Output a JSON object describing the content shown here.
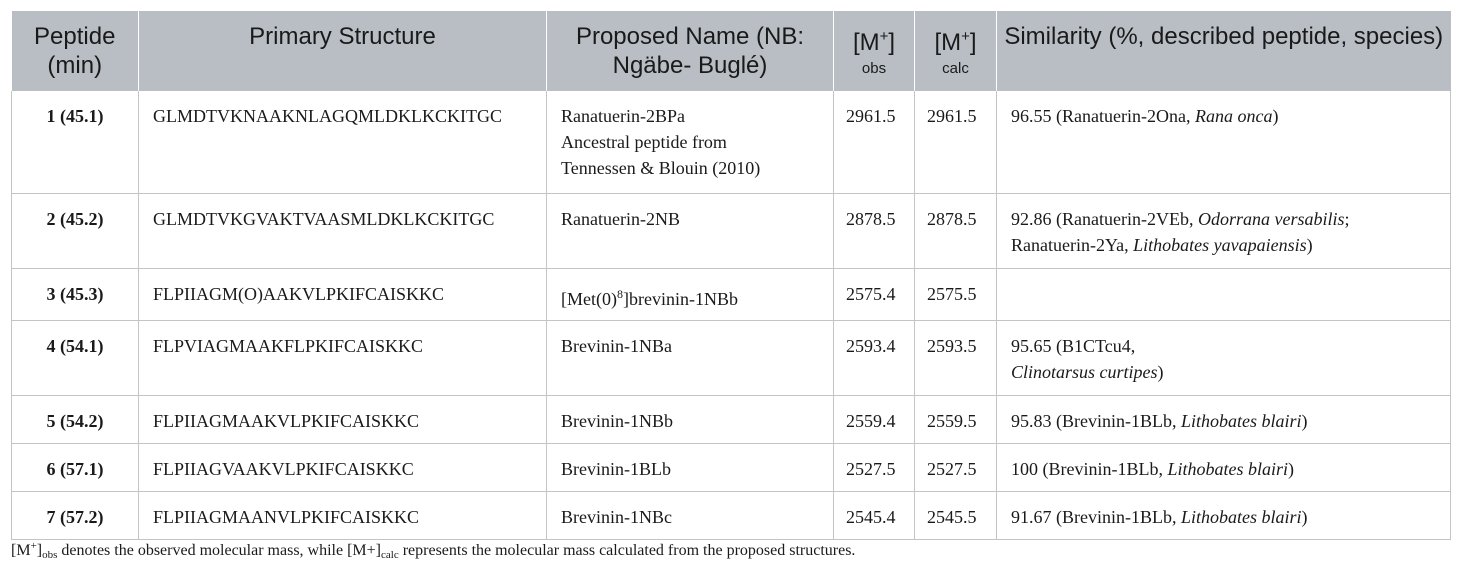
{
  "headers": {
    "peptide": "Peptide (min)",
    "primary": "Primary Structure",
    "name": "Proposed Name (NB: Ngäbe- Buglé)",
    "obs_main": "[M",
    "obs_sup": "+",
    "obs_close": "]",
    "obs_sub": "obs",
    "calc_main": "[M",
    "calc_sup": "+",
    "calc_close": "]",
    "calc_sub": "calc",
    "similarity": "Similarity (%, described peptide, species)"
  },
  "rows": [
    {
      "peptide": "1 (45.1)",
      "primary": "GLMDTVKNAAKNLAGQMLDKLKCKITGC",
      "name_lines": [
        "Ranatuerin-2BPa",
        "Ancestral peptide from",
        "Tennessen & Blouin (2010)"
      ],
      "obs": "2961.5",
      "calc": "2961.5",
      "sim_parts": [
        {
          "text": "96.55 (Ranatuerin-2Ona, ",
          "italic": false
        },
        {
          "text": "Rana onca",
          "italic": true
        },
        {
          "text": ")",
          "italic": false
        }
      ]
    },
    {
      "peptide": "2 (45.2)",
      "primary": "GLMDTVKGVAKTVAASMLDKLKCKITGC",
      "name": "Ranatuerin-2NB",
      "obs": "2878.5",
      "calc": "2878.5",
      "sim_l1": [
        {
          "text": "92.86 (Ranatuerin-2VEb, ",
          "italic": false
        },
        {
          "text": "Odorrana versabilis",
          "italic": true
        },
        {
          "text": ";",
          "italic": false
        }
      ],
      "sim_l2": [
        {
          "text": "Ranatuerin-2Ya, ",
          "italic": false
        },
        {
          "text": "Lithobates yavapaiensis",
          "italic": true
        },
        {
          "text": ")",
          "italic": false
        }
      ]
    },
    {
      "peptide": "3 (45.3)",
      "primary": "FLPIIAGM(O)AAKVLPKIFCAISKKC",
      "name_pre": "[Met(0)",
      "name_sup": "8",
      "name_post": "]brevinin-1NBb",
      "obs": "2575.4",
      "calc": "2575.5"
    },
    {
      "peptide": "4 (54.1)",
      "primary": "FLPVIAGMAAKFLPKIFCAISKKC",
      "name": "Brevinin-1NBa",
      "obs": "2593.4",
      "calc": "2593.5",
      "sim_l1": "95.65 (B1CTcu4,",
      "sim_l2_italic": "Clinotarsus curtipes",
      "sim_l2_close": ")"
    },
    {
      "peptide": "5 (54.2)",
      "primary": "FLPIIAGMAAKVLPKIFCAISKKC",
      "name": "Brevinin-1NBb",
      "obs": "2559.4",
      "calc": "2559.5",
      "sim_pre": "95.83 (Brevinin-1BLb, ",
      "sim_italic": "Lithobates blairi",
      "sim_post": ")"
    },
    {
      "peptide": "6 (57.1)",
      "primary": "FLPIIAGVAAKVLPKIFCAISKKC",
      "name": "Brevinin-1BLb",
      "obs": "2527.5",
      "calc": "2527.5",
      "sim_pre": "100 (Brevinin-1BLb, ",
      "sim_italic": "Lithobates blairi",
      "sim_post": ")"
    },
    {
      "peptide": "7 (57.2)",
      "primary": "FLPIIAGMAANVLPKIFCAISKKC",
      "name": "Brevinin-1NBc",
      "obs": "2545.4",
      "calc": "2545.5",
      "sim_pre": "91.67 (Brevinin-1BLb, ",
      "sim_italic": "Lithobates blairi",
      "sim_post": ")"
    }
  ],
  "footnote": {
    "p1": "[M",
    "sup": "+",
    "p2": "]",
    "sub1": "obs",
    "p3": " denotes the observed molecular mass, while [M+]",
    "sub2": "calc",
    "p4": " represents the molecular mass calculated from the proposed structures."
  }
}
